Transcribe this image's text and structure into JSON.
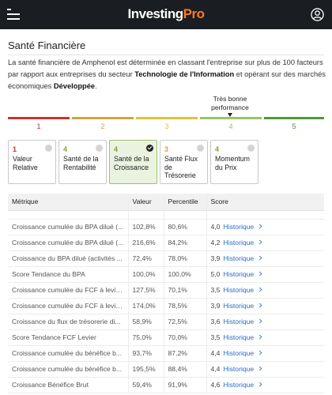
{
  "header": {
    "logo_main": "Investing",
    "logo_pro": "Pro"
  },
  "section_title": "Santé Financière",
  "description": {
    "part1": "La santé financière de Amphenol est déterminée en classant l'entreprise sur plus de 100 facteurs par rapport aux entreprises du secteur ",
    "sector": "Technologie de l'Information",
    "part2": " et opérant sur des marchés économiques ",
    "market": "Développée",
    "part3": "."
  },
  "performance": {
    "label_line1": "Très bonne",
    "label_line2": "performance",
    "current_level": 4
  },
  "scale": {
    "levels": [
      "1",
      "2",
      "3",
      "4",
      "5"
    ],
    "colors": [
      "#c8352b",
      "#d6a23a",
      "#e0c23d",
      "#9bc45c",
      "#4f9a35"
    ]
  },
  "cards": [
    {
      "score": "1",
      "label": "Valeur Relative",
      "color": "#c8352b",
      "selected": false
    },
    {
      "score": "4",
      "label": "Santé de la Rentabilité",
      "color": "#7ba23e",
      "selected": false
    },
    {
      "score": "4",
      "label": "Santé de la Croissance",
      "color": "#7ba23e",
      "selected": true
    },
    {
      "score": "3",
      "label": "Santé Flux de Trésorerie",
      "color": "#d6a23a",
      "selected": false
    },
    {
      "score": "4",
      "label": "Momentum du Prix",
      "color": "#7ba23e",
      "selected": false
    }
  ],
  "table": {
    "headers": {
      "metric": "Métrique",
      "value": "Valeur",
      "percentile": "Percentile",
      "score": "Score"
    },
    "history_label": "Historique",
    "rows": [
      {
        "metric": "Croissance cumulée du BPA dilué (...",
        "value": "102,8%",
        "percentile": "80,6%",
        "score": "4,0"
      },
      {
        "metric": "Croissance cumulée du BPA dilué (...",
        "value": "216,6%",
        "percentile": "84,2%",
        "score": "4,2"
      },
      {
        "metric": "Croissance du BPA dilué (activités ...",
        "value": "72,4%",
        "percentile": "78,0%",
        "score": "3,9"
      },
      {
        "metric": "Score Tendance du BPA",
        "value": "100,0%",
        "percentile": "100,0%",
        "score": "5,0"
      },
      {
        "metric": "Croissance cumulée du FCF à levie...",
        "value": "127,5%",
        "percentile": "70,1%",
        "score": "3,5"
      },
      {
        "metric": "Croissance cumulée du FCF à levie...",
        "value": "174,0%",
        "percentile": "78,5%",
        "score": "3,9"
      },
      {
        "metric": "Croissance du flux de trésorerie di...",
        "value": "58,9%",
        "percentile": "72,5%",
        "score": "3,6"
      },
      {
        "metric": "Score Tendance FCF Levier",
        "value": "75,0%",
        "percentile": "70,0%",
        "score": "3,5"
      },
      {
        "metric": "Croissance cumulée du bénéfice b...",
        "value": "93,7%",
        "percentile": "87,2%",
        "score": "4,4"
      },
      {
        "metric": "Croissance cumulée du bénéfice b...",
        "value": "195,5%",
        "percentile": "88,4%",
        "score": "4,4"
      },
      {
        "metric": "Croissance Bénéfice Brut",
        "value": "59,4%",
        "percentile": "91,9%",
        "score": "4,6"
      }
    ]
  }
}
